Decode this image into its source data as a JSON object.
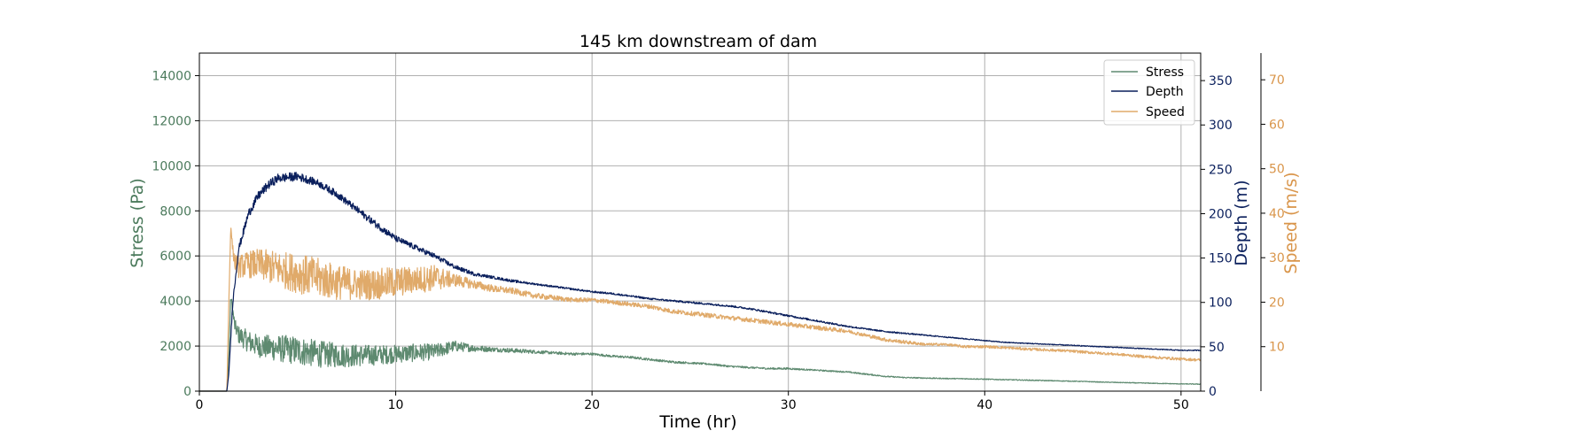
{
  "chart_data": {
    "type": "line",
    "title": "145 km downstream of dam",
    "xlabel": "Time (hr)",
    "xlim": [
      0,
      51
    ],
    "xticks": [
      0,
      10,
      20,
      30,
      40,
      50
    ],
    "grid": true,
    "legend": "top-right",
    "axes": {
      "stress": {
        "label": "Stress (Pa)",
        "ylim": [
          0,
          15000
        ],
        "ticks": [
          0,
          2000,
          4000,
          6000,
          8000,
          10000,
          12000,
          14000
        ],
        "color": "#4b7a5c"
      },
      "depth": {
        "label": "Depth (m)",
        "ylim": [
          0,
          381
        ],
        "ticks": [
          0,
          50,
          100,
          150,
          200,
          250,
          300,
          350
        ],
        "color": "#0a1f5c"
      },
      "speed": {
        "label": "Speed (m/s)",
        "ylim": [
          0,
          76
        ],
        "ticks": [
          10,
          20,
          30,
          40,
          50,
          60,
          70
        ],
        "color": "#d9954a"
      }
    },
    "series": [
      {
        "name": "Stress",
        "axis": "stress",
        "color": "#5e8a70",
        "x": [
          0,
          1.4,
          1.5,
          1.6,
          1.8,
          2,
          2.5,
          3,
          4,
          5,
          6,
          7,
          8,
          9,
          10,
          11,
          12,
          13,
          14,
          15,
          16,
          17,
          18,
          19,
          20,
          21,
          22,
          23,
          24,
          25,
          26,
          27,
          28,
          29,
          30,
          31,
          32,
          33,
          34,
          35,
          36,
          37,
          38,
          39,
          40,
          41,
          42,
          43,
          44,
          45,
          46,
          47,
          48,
          49,
          50,
          51
        ],
        "y": [
          0,
          0,
          1500,
          4200,
          2900,
          2500,
          2200,
          2000,
          1900,
          1800,
          1650,
          1600,
          1580,
          1600,
          1650,
          1700,
          1750,
          2000,
          1900,
          1850,
          1800,
          1750,
          1700,
          1650,
          1650,
          1550,
          1500,
          1400,
          1300,
          1250,
          1200,
          1100,
          1050,
          1000,
          1000,
          950,
          900,
          850,
          750,
          650,
          600,
          580,
          560,
          550,
          530,
          510,
          490,
          470,
          450,
          430,
          400,
          380,
          360,
          340,
          320,
          310
        ],
        "noise": [
          0,
          0,
          0,
          200,
          300,
          400,
          500,
          500,
          600,
          650,
          600,
          550,
          500,
          450,
          400,
          400,
          350,
          250,
          150,
          100,
          100,
          80,
          60,
          60,
          50,
          50,
          50,
          50,
          50,
          40,
          40,
          40,
          40,
          40,
          40,
          30,
          30,
          30,
          30,
          25,
          25,
          25,
          20,
          20,
          20,
          20,
          20,
          20,
          15,
          15,
          15,
          15,
          15,
          15,
          15,
          15
        ]
      },
      {
        "name": "Depth",
        "axis": "depth",
        "color": "#0a1f5c",
        "x": [
          0,
          1.4,
          1.5,
          1.7,
          2,
          2.5,
          3,
          3.5,
          4,
          5,
          6,
          7,
          8,
          9,
          10,
          11,
          12,
          13,
          14,
          15,
          16,
          17,
          18,
          19,
          20,
          21,
          22,
          23,
          24,
          25,
          26,
          27,
          28,
          29,
          30,
          31,
          32,
          33,
          34,
          35,
          36,
          37,
          38,
          39,
          40,
          41,
          42,
          43,
          44,
          45,
          46,
          47,
          48,
          49,
          50,
          51
        ],
        "y": [
          0,
          0,
          20,
          100,
          160,
          200,
          220,
          232,
          240,
          242,
          235,
          222,
          205,
          188,
          172,
          162,
          152,
          140,
          132,
          128,
          124,
          121,
          118,
          115,
          112,
          110,
          107,
          104,
          102,
          100,
          98,
          96,
          93,
          89,
          85,
          81,
          77,
          73,
          70,
          67,
          65,
          63,
          61,
          59,
          57,
          55,
          54,
          53,
          52,
          51,
          50,
          49,
          48,
          47,
          46,
          46
        ],
        "noise": [
          0,
          0,
          0,
          3,
          4,
          5,
          5,
          5,
          5,
          5,
          4,
          4,
          4,
          4,
          3.5,
          3,
          3,
          2.5,
          2,
          1.5,
          1.5,
          1,
          1,
          1,
          1,
          1,
          1,
          1,
          1,
          1,
          1,
          1,
          1,
          1,
          1,
          1,
          1,
          1,
          0.8,
          0.8,
          0.8,
          0.6,
          0.6,
          0.6,
          0.5,
          0.5,
          0.5,
          0.5,
          0.5,
          0.5,
          0.5,
          0.5,
          0.5,
          0.5,
          0.5,
          0.5
        ]
      },
      {
        "name": "Speed",
        "axis": "speed",
        "color": "#e0aa6a",
        "x": [
          0,
          1.4,
          1.5,
          1.6,
          1.7,
          1.8,
          2,
          2.5,
          3,
          4,
          5,
          6,
          7,
          8,
          9,
          10,
          11,
          12,
          13,
          14,
          15,
          16,
          17,
          18,
          19,
          20,
          21,
          22,
          23,
          24,
          25,
          26,
          27,
          28,
          29,
          30,
          31,
          32,
          33,
          34,
          35,
          36,
          37,
          38,
          39,
          40,
          41,
          42,
          43,
          44,
          45,
          46,
          47,
          48,
          49,
          50,
          51
        ],
        "y": [
          0,
          0,
          20,
          37,
          32,
          29,
          28,
          28.5,
          28.5,
          27.5,
          26.5,
          25.5,
          24.5,
          24,
          24,
          24.5,
          25,
          25.5,
          25,
          24,
          23,
          22.5,
          21.5,
          21,
          20.5,
          20.5,
          20,
          19.5,
          19,
          18,
          17.5,
          17,
          16.5,
          16,
          15.5,
          15,
          14.5,
          14,
          13.5,
          12.5,
          11.5,
          11,
          10.5,
          10.5,
          10,
          10,
          9.8,
          9.5,
          9.3,
          9.1,
          8.8,
          8.5,
          8.2,
          7.8,
          7.5,
          7.2,
          7
        ],
        "noise": [
          0,
          0,
          0,
          0,
          1,
          2,
          2.5,
          3,
          3.5,
          4,
          4.5,
          4.5,
          4,
          3.5,
          3.5,
          3.5,
          3,
          3,
          1.5,
          1,
          0.8,
          0.7,
          0.6,
          0.6,
          0.5,
          0.5,
          0.5,
          0.5,
          0.5,
          0.5,
          0.5,
          0.5,
          0.5,
          0.5,
          0.5,
          0.5,
          0.5,
          0.5,
          0.4,
          0.4,
          0.4,
          0.4,
          0.3,
          0.3,
          0.3,
          0.3,
          0.3,
          0.3,
          0.3,
          0.3,
          0.3,
          0.3,
          0.3,
          0.3,
          0.3,
          0.3,
          0.3
        ]
      }
    ]
  }
}
